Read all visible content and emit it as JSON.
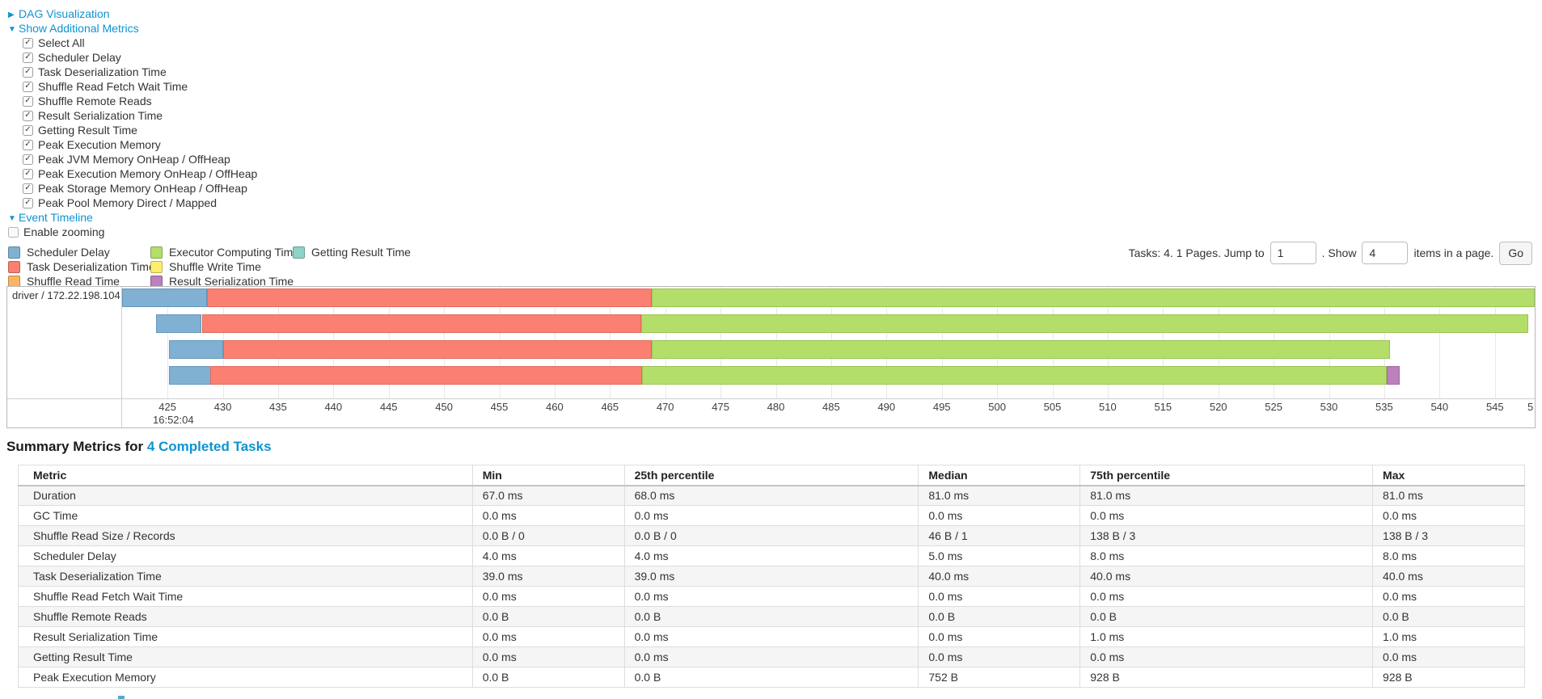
{
  "controls": {
    "dag": {
      "label": "DAG Visualization",
      "arrow": "▶"
    },
    "metrics_toggle": {
      "label": "Show Additional Metrics",
      "arrow": "▼"
    },
    "checkboxes": [
      {
        "label": "Select All",
        "checked": true
      },
      {
        "label": "Scheduler Delay",
        "checked": true
      },
      {
        "label": "Task Deserialization Time",
        "checked": true
      },
      {
        "label": "Shuffle Read Fetch Wait Time",
        "checked": true
      },
      {
        "label": "Shuffle Remote Reads",
        "checked": true
      },
      {
        "label": "Result Serialization Time",
        "checked": true
      },
      {
        "label": "Getting Result Time",
        "checked": true
      },
      {
        "label": "Peak Execution Memory",
        "checked": true
      },
      {
        "label": "Peak JVM Memory OnHeap / OffHeap",
        "checked": true
      },
      {
        "label": "Peak Execution Memory OnHeap / OffHeap",
        "checked": true
      },
      {
        "label": "Peak Storage Memory OnHeap / OffHeap",
        "checked": true
      },
      {
        "label": "Peak Pool Memory Direct / Mapped",
        "checked": true
      }
    ],
    "event_timeline": {
      "label": "Event Timeline",
      "arrow": "▼"
    },
    "enable_zooming": {
      "label": "Enable zooming",
      "checked": false
    }
  },
  "pagination": {
    "tasks_text": "Tasks: 4. 1 Pages. Jump to",
    "jump_value": "1",
    "show_text": ". Show",
    "show_value": "4",
    "items_text": "items in a page.",
    "go_label": "Go"
  },
  "legend": {
    "columns": [
      [
        {
          "label": "Scheduler Delay",
          "color": "#80B1D3",
          "stroke": "#6497bd"
        },
        {
          "label": "Task Deserialization Time",
          "color": "#FB8072",
          "stroke": "#e06a5e"
        },
        {
          "label": "Shuffle Read Time",
          "color": "#FDB462",
          "stroke": "#e09a4a"
        }
      ],
      [
        {
          "label": "Executor Computing Time",
          "color": "#B3DE69",
          "stroke": "#98c550"
        },
        {
          "label": "Shuffle Write Time",
          "color": "#FFED6F",
          "stroke": "#e3d055"
        },
        {
          "label": "Result Serialization Time",
          "color": "#BC80BD",
          "stroke": "#a468a5"
        }
      ],
      [
        {
          "label": "Getting Result Time",
          "color": "#8DD3C7",
          "stroke": "#74b8ac"
        }
      ]
    ]
  },
  "chart_data": {
    "type": "timeline-gantt",
    "title": "Event Timeline",
    "row_label": "driver / 172.22.198.104",
    "x_axis_note": "milliseconds within clock second 16:52:04",
    "x_domain": [
      420.9,
      548.6
    ],
    "x_ticks": [
      425,
      430,
      435,
      440,
      445,
      450,
      455,
      460,
      465,
      470,
      475,
      480,
      485,
      490,
      495,
      500,
      505,
      510,
      515,
      520,
      525,
      530,
      535,
      540,
      545
    ],
    "x_tick_clipped_label": "5",
    "x_time_label": "16:52:04",
    "tasks": [
      {
        "segments": [
          {
            "name": "Scheduler Delay",
            "start": 420.9,
            "end": 428.6
          },
          {
            "name": "Task Deserialization Time",
            "start": 428.6,
            "end": 468.8
          },
          {
            "name": "Executor Computing Time",
            "start": 468.8,
            "end": 548.6
          }
        ]
      },
      {
        "segments": [
          {
            "name": "Scheduler Delay",
            "start": 424.0,
            "end": 428.1
          },
          {
            "name": "Task Deserialization Time",
            "start": 428.1,
            "end": 467.8
          },
          {
            "name": "Executor Computing Time",
            "start": 467.8,
            "end": 548.0
          }
        ]
      },
      {
        "segments": [
          {
            "name": "Scheduler Delay",
            "start": 425.1,
            "end": 430.0
          },
          {
            "name": "Task Deserialization Time",
            "start": 430.0,
            "end": 468.8
          },
          {
            "name": "Executor Computing Time",
            "start": 468.8,
            "end": 535.5
          }
        ]
      },
      {
        "segments": [
          {
            "name": "Scheduler Delay",
            "start": 425.1,
            "end": 428.9
          },
          {
            "name": "Task Deserialization Time",
            "start": 428.9,
            "end": 467.9
          },
          {
            "name": "Executor Computing Time",
            "start": 467.9,
            "end": 535.2
          },
          {
            "name": "Result Serialization Time",
            "start": 535.2,
            "end": 536.4
          }
        ]
      }
    ]
  },
  "summary": {
    "heading_prefix": "Summary Metrics for ",
    "heading_link": "4 Completed Tasks",
    "table": {
      "columns": [
        "Metric",
        "Min",
        "25th percentile",
        "Median",
        "75th percentile",
        "Max"
      ],
      "rows": [
        [
          "Duration",
          "67.0 ms",
          "68.0 ms",
          "81.0 ms",
          "81.0 ms",
          "81.0 ms"
        ],
        [
          "GC Time",
          "0.0 ms",
          "0.0 ms",
          "0.0 ms",
          "0.0 ms",
          "0.0 ms"
        ],
        [
          "Shuffle Read Size / Records",
          "0.0 B / 0",
          "0.0 B / 0",
          "46 B / 1",
          "138 B / 3",
          "138 B / 3"
        ],
        [
          "Scheduler Delay",
          "4.0 ms",
          "4.0 ms",
          "5.0 ms",
          "8.0 ms",
          "8.0 ms"
        ],
        [
          "Task Deserialization Time",
          "39.0 ms",
          "39.0 ms",
          "40.0 ms",
          "40.0 ms",
          "40.0 ms"
        ],
        [
          "Shuffle Read Fetch Wait Time",
          "0.0 ms",
          "0.0 ms",
          "0.0 ms",
          "0.0 ms",
          "0.0 ms"
        ],
        [
          "Shuffle Remote Reads",
          "0.0 B",
          "0.0 B",
          "0.0 B",
          "0.0 B",
          "0.0 B"
        ],
        [
          "Result Serialization Time",
          "0.0 ms",
          "0.0 ms",
          "0.0 ms",
          "1.0 ms",
          "1.0 ms"
        ],
        [
          "Getting Result Time",
          "0.0 ms",
          "0.0 ms",
          "0.0 ms",
          "0.0 ms",
          "0.0 ms"
        ],
        [
          "Peak Execution Memory",
          "0.0 B",
          "0.0 B",
          "752 B",
          "928 B",
          "928 B"
        ]
      ]
    }
  }
}
